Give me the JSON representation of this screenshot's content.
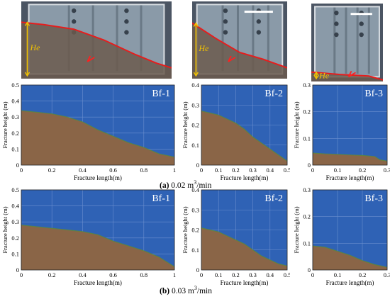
{
  "photos": [
    {
      "label": "He",
      "marker": "#ff2020",
      "curve": [
        [
          0.0,
          0.27
        ],
        [
          0.15,
          0.3
        ],
        [
          0.35,
          0.36
        ],
        [
          0.55,
          0.5
        ],
        [
          0.75,
          0.68
        ],
        [
          0.9,
          0.8
        ],
        [
          1.0,
          0.86
        ]
      ]
    },
    {
      "label": "He",
      "marker": "#ff2020",
      "curve": [
        [
          0.0,
          0.28
        ],
        [
          0.25,
          0.48
        ],
        [
          0.5,
          0.66
        ],
        [
          0.75,
          0.75
        ],
        [
          1.0,
          0.86
        ]
      ]
    },
    {
      "label": "He",
      "marker": "#ff2020",
      "curve": [
        [
          0.0,
          0.88
        ],
        [
          0.4,
          0.91
        ],
        [
          0.8,
          0.93
        ],
        [
          1.0,
          0.98
        ]
      ]
    }
  ],
  "captions": [
    {
      "tag": "(a)",
      "text": " 0.02 m",
      "sup": "3",
      "tail": "/min"
    },
    {
      "tag": "(b)",
      "text": " 0.03 m",
      "sup": "3",
      "tail": "/min"
    }
  ],
  "colors": {
    "fluid": "#2f62b5",
    "proppant": "#8a6547",
    "interface": "#5a8a3a",
    "grid": "#6b8fcf"
  },
  "chart_data": [
    {
      "type": "area",
      "title": "Bf-1",
      "xlabel": "Fracture length(m)",
      "ylabel": "Fracture height (m)",
      "xlim": [
        0,
        1
      ],
      "ylim": [
        0,
        0.5
      ],
      "xticks": [
        "0",
        "0.2",
        "0.4",
        "0.6",
        "0.8",
        "1"
      ],
      "yticks": [
        "0",
        "0.1",
        "0.2",
        "0.3",
        "0.4",
        "0.5"
      ],
      "x": [
        0,
        0.1,
        0.2,
        0.3,
        0.4,
        0.5,
        0.6,
        0.7,
        0.8,
        0.9,
        1.0
      ],
      "y": [
        0.34,
        0.33,
        0.32,
        0.3,
        0.27,
        0.22,
        0.18,
        0.14,
        0.11,
        0.07,
        0.05
      ]
    },
    {
      "type": "area",
      "title": "Bf-2",
      "xlabel": "Fracture length(m)",
      "ylabel": "Fracture height (m)",
      "xlim": [
        0,
        0.5
      ],
      "ylim": [
        0,
        0.4
      ],
      "xticks": [
        "0",
        "0.1",
        "0.2",
        "0.3",
        "0.4",
        "0.5"
      ],
      "yticks": [
        "0",
        "0.1",
        "0.2",
        "0.3",
        "0.4"
      ],
      "x": [
        0,
        0.05,
        0.1,
        0.15,
        0.2,
        0.25,
        0.3,
        0.35,
        0.4,
        0.45,
        0.5
      ],
      "y": [
        0.27,
        0.26,
        0.25,
        0.23,
        0.21,
        0.18,
        0.14,
        0.11,
        0.08,
        0.05,
        0.02
      ]
    },
    {
      "type": "area",
      "title": "Bf-3",
      "xlabel": "Fracture length(m)",
      "ylabel": "Fracture height (m)",
      "xlim": [
        0,
        0.3
      ],
      "ylim": [
        0,
        0.3
      ],
      "xticks": [
        "0",
        "0.1",
        "0.2",
        "0.3"
      ],
      "yticks": [
        "0",
        "0.1",
        "0.2",
        "0.3"
      ],
      "x": [
        0,
        0.05,
        0.1,
        0.15,
        0.2,
        0.25,
        0.27,
        0.3
      ],
      "y": [
        0.045,
        0.042,
        0.04,
        0.038,
        0.036,
        0.032,
        0.02,
        0.015
      ]
    },
    {
      "type": "area",
      "title": "Bf-1",
      "xlabel": "Fracture length(m)",
      "ylabel": "Fracture height (m)",
      "xlim": [
        0,
        1
      ],
      "ylim": [
        0,
        0.5
      ],
      "xticks": [
        "0",
        "0.2",
        "0.4",
        "0.6",
        "0.8",
        "1"
      ],
      "yticks": [
        "0",
        "0.1",
        "0.2",
        "0.3",
        "0.4",
        "0.5"
      ],
      "x": [
        0,
        0.1,
        0.2,
        0.3,
        0.4,
        0.5,
        0.6,
        0.7,
        0.8,
        0.9,
        1.0
      ],
      "y": [
        0.28,
        0.27,
        0.26,
        0.25,
        0.24,
        0.22,
        0.18,
        0.15,
        0.12,
        0.08,
        0.02
      ]
    },
    {
      "type": "area",
      "title": "Bf-2",
      "xlabel": "Fracture length(m)",
      "ylabel": "Fracture height (m)",
      "xlim": [
        0,
        0.5
      ],
      "ylim": [
        0,
        0.4
      ],
      "xticks": [
        "0",
        "0.1",
        "0.2",
        "0.3",
        "0.4",
        "0.5"
      ],
      "yticks": [
        "0",
        "0.1",
        "0.2",
        "0.3",
        "0.4"
      ],
      "x": [
        0,
        0.05,
        0.1,
        0.15,
        0.2,
        0.25,
        0.3,
        0.35,
        0.4,
        0.45,
        0.5
      ],
      "y": [
        0.21,
        0.2,
        0.19,
        0.17,
        0.15,
        0.13,
        0.1,
        0.07,
        0.05,
        0.03,
        0.02
      ]
    },
    {
      "type": "area",
      "title": "Bf-3",
      "xlabel": "Fracture length(m)",
      "ylabel": "Fracture height (m)",
      "xlim": [
        0,
        0.3
      ],
      "ylim": [
        0,
        0.3
      ],
      "xticks": [
        "0",
        "0.1",
        "0.2",
        "0.3"
      ],
      "yticks": [
        "0",
        "0.1",
        "0.2",
        "0.3"
      ],
      "x": [
        0,
        0.05,
        0.1,
        0.15,
        0.2,
        0.25,
        0.3
      ],
      "y": [
        0.09,
        0.085,
        0.07,
        0.055,
        0.035,
        0.02,
        0.01
      ]
    }
  ]
}
